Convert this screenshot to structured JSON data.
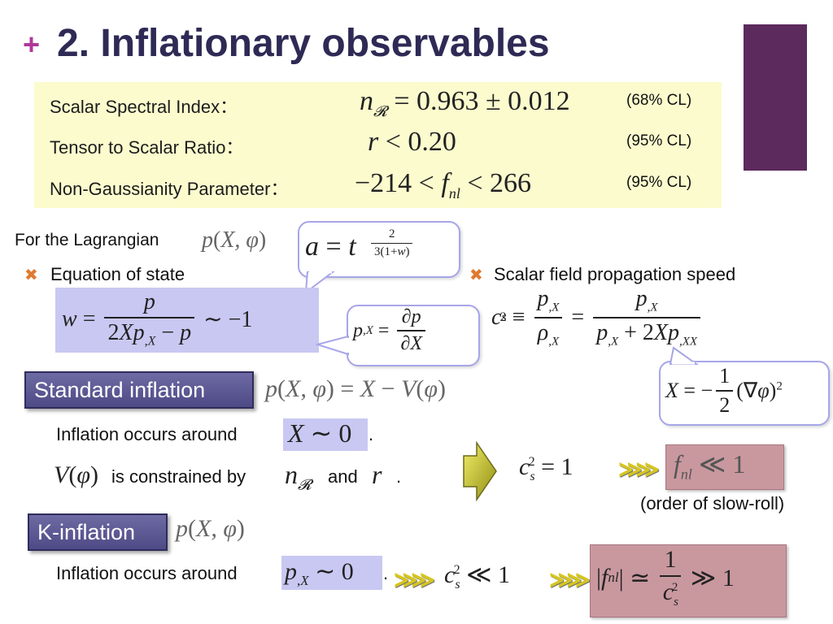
{
  "slide": {
    "plus": "+",
    "title": "2. Inflationary observables"
  },
  "observables": [
    {
      "label": "Scalar Spectral Index：",
      "cl": "(68% CL)"
    },
    {
      "label": "Tensor to Scalar Ratio：",
      "cl": "(95% CL)"
    },
    {
      "label": "Non-Gaussianity Parameter：",
      "cl": "(95% CL)"
    }
  ],
  "lagrangian": {
    "intro": "For the Lagrangian"
  },
  "eos": {
    "label": "Equation of state"
  },
  "speed": {
    "label": "Scalar field propagation speed"
  },
  "standard": {
    "header": "Standard inflation",
    "occurs": "Inflation occurs around",
    "constrained": "is constrained by",
    "and": "and",
    "slowroll_note": "(order of slow-roll)"
  },
  "kinflation": {
    "header": "K-inflation",
    "occurs": "Inflation occurs around"
  },
  "colors": {
    "accent_plus": "#b0389a",
    "title": "#2e2a55",
    "purple_bar": "#5c2a5c",
    "highlight_yellow": "#fbfbce",
    "highlight_blue": "#c9c8f2",
    "highlight_rose": "#c9989f"
  },
  "icons": {
    "bullet": "cross-bullet-icon",
    "arrow": "right-arrow-icon",
    "chevron": "double-chevron-icon"
  }
}
